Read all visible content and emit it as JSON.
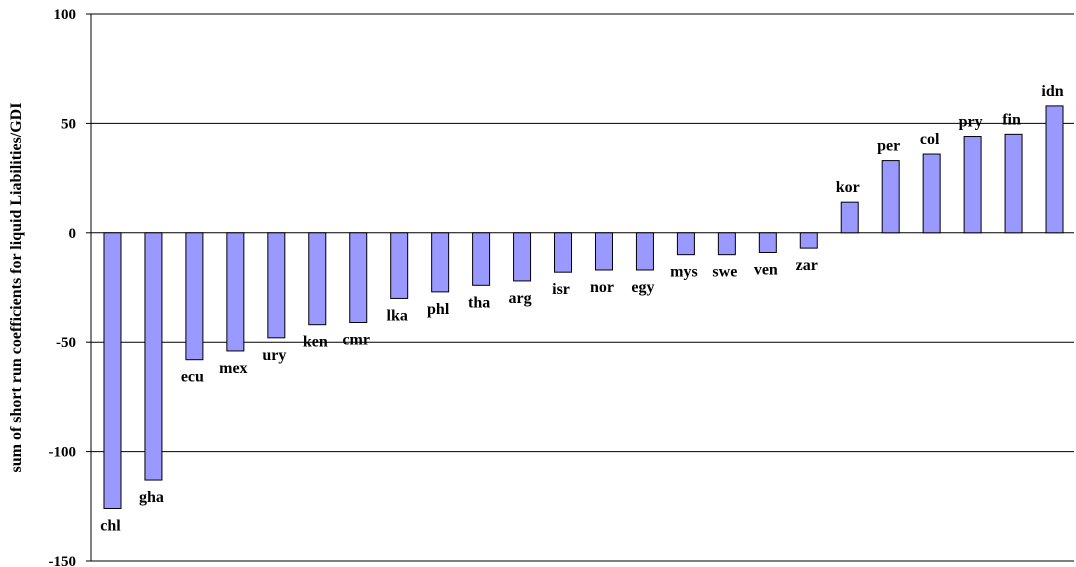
{
  "chart_data": {
    "type": "bar",
    "title": "",
    "xlabel": "",
    "ylabel": "sum of short run coefficients for liquid Liabilities/GDI",
    "ylim": [
      -150,
      100
    ],
    "yticks": [
      100,
      50,
      0,
      -50,
      -100,
      -150
    ],
    "grid": true,
    "categories": [
      "chl",
      "gha",
      "ecu",
      "mex",
      "ury",
      "ken",
      "cmr",
      "lka",
      "phl",
      "tha",
      "arg",
      "isr",
      "nor",
      "egy",
      "mys",
      "swe",
      "ven",
      "zar",
      "kor",
      "per",
      "col",
      "pry",
      "fin",
      "idn"
    ],
    "values": [
      -126,
      -113,
      -58,
      -54,
      -48,
      -42,
      -41,
      -30,
      -27,
      -24,
      -22,
      -18,
      -17,
      -17,
      -10,
      -10,
      -9,
      -7,
      14,
      33,
      36,
      44,
      45,
      58
    ],
    "bar_color": "#9999ff",
    "bar_stroke": "#000000"
  }
}
